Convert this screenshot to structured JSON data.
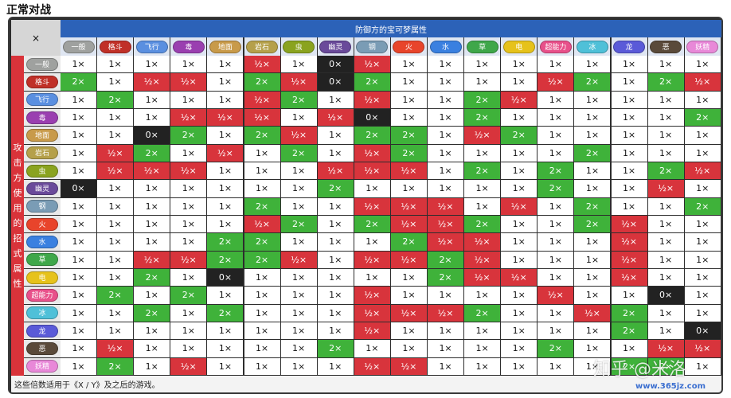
{
  "page_title": "正常对战",
  "corner_label": "×",
  "defender_header": "防御方的宝可梦属性",
  "attacker_header": "攻击方使用的招式属性",
  "footnote": "这些倍数适用于《X / Y》及之后的游戏。",
  "watermark": "知乎 @米洛",
  "watermark_url": "www.365jz.com",
  "types": [
    {
      "name": "一般",
      "color": "#9fa19f"
    },
    {
      "name": "格斗",
      "color": "#c03028"
    },
    {
      "name": "飞行",
      "color": "#5a8fe0"
    },
    {
      "name": "毒",
      "color": "#9a3fb0"
    },
    {
      "name": "地面",
      "color": "#c89a4a"
    },
    {
      "name": "岩石",
      "color": "#b5a04a"
    },
    {
      "name": "虫",
      "color": "#8aa31f"
    },
    {
      "name": "幽灵",
      "color": "#6a4a9a"
    },
    {
      "name": "钢",
      "color": "#7a9cb5"
    },
    {
      "name": "火",
      "color": "#e8442b"
    },
    {
      "name": "水",
      "color": "#3a80e0"
    },
    {
      "name": "草",
      "color": "#3fa74a"
    },
    {
      "name": "电",
      "color": "#e6c21b"
    },
    {
      "name": "超能力",
      "color": "#e8508a"
    },
    {
      "name": "冰",
      "color": "#4fc0d8"
    },
    {
      "name": "龙",
      "color": "#5a5ad8"
    },
    {
      "name": "恶",
      "color": "#5a4a3a"
    },
    {
      "name": "妖精",
      "color": "#e888d8"
    }
  ],
  "matrix": [
    [
      "1×",
      "1×",
      "1×",
      "1×",
      "1×",
      "½×",
      "1×",
      "0×",
      "½×",
      "1×",
      "1×",
      "1×",
      "1×",
      "1×",
      "1×",
      "1×",
      "1×",
      "1×"
    ],
    [
      "2×",
      "1×",
      "½×",
      "½×",
      "1×",
      "2×",
      "½×",
      "0×",
      "2×",
      "1×",
      "1×",
      "1×",
      "1×",
      "½×",
      "2×",
      "1×",
      "2×",
      "½×"
    ],
    [
      "1×",
      "2×",
      "1×",
      "1×",
      "1×",
      "½×",
      "2×",
      "1×",
      "½×",
      "1×",
      "1×",
      "2×",
      "½×",
      "1×",
      "1×",
      "1×",
      "1×",
      "1×"
    ],
    [
      "1×",
      "1×",
      "1×",
      "½×",
      "½×",
      "½×",
      "1×",
      "½×",
      "0×",
      "1×",
      "1×",
      "2×",
      "1×",
      "1×",
      "1×",
      "1×",
      "1×",
      "2×"
    ],
    [
      "1×",
      "1×",
      "0×",
      "2×",
      "1×",
      "2×",
      "½×",
      "1×",
      "2×",
      "2×",
      "1×",
      "½×",
      "2×",
      "1×",
      "1×",
      "1×",
      "1×",
      "1×"
    ],
    [
      "1×",
      "½×",
      "2×",
      "1×",
      "½×",
      "1×",
      "2×",
      "1×",
      "½×",
      "2×",
      "1×",
      "1×",
      "1×",
      "1×",
      "2×",
      "1×",
      "1×",
      "1×"
    ],
    [
      "1×",
      "½×",
      "½×",
      "½×",
      "1×",
      "1×",
      "1×",
      "½×",
      "½×",
      "½×",
      "1×",
      "2×",
      "1×",
      "2×",
      "1×",
      "1×",
      "2×",
      "½×"
    ],
    [
      "0×",
      "1×",
      "1×",
      "1×",
      "1×",
      "1×",
      "1×",
      "2×",
      "1×",
      "1×",
      "1×",
      "1×",
      "1×",
      "2×",
      "1×",
      "1×",
      "½×",
      "1×"
    ],
    [
      "1×",
      "1×",
      "1×",
      "1×",
      "1×",
      "2×",
      "1×",
      "1×",
      "½×",
      "½×",
      "½×",
      "1×",
      "½×",
      "1×",
      "2×",
      "1×",
      "1×",
      "2×"
    ],
    [
      "1×",
      "1×",
      "1×",
      "1×",
      "1×",
      "½×",
      "2×",
      "1×",
      "2×",
      "½×",
      "½×",
      "2×",
      "1×",
      "1×",
      "2×",
      "½×",
      "1×",
      "1×"
    ],
    [
      "1×",
      "1×",
      "1×",
      "1×",
      "2×",
      "2×",
      "1×",
      "1×",
      "1×",
      "2×",
      "½×",
      "½×",
      "1×",
      "1×",
      "1×",
      "½×",
      "1×",
      "1×"
    ],
    [
      "1×",
      "1×",
      "½×",
      "½×",
      "2×",
      "2×",
      "½×",
      "1×",
      "½×",
      "½×",
      "2×",
      "½×",
      "1×",
      "1×",
      "1×",
      "½×",
      "1×",
      "1×"
    ],
    [
      "1×",
      "1×",
      "2×",
      "1×",
      "0×",
      "1×",
      "1×",
      "1×",
      "1×",
      "1×",
      "2×",
      "½×",
      "½×",
      "1×",
      "1×",
      "½×",
      "1×",
      "1×"
    ],
    [
      "1×",
      "2×",
      "1×",
      "2×",
      "1×",
      "1×",
      "1×",
      "1×",
      "½×",
      "1×",
      "1×",
      "1×",
      "1×",
      "½×",
      "1×",
      "1×",
      "0×",
      "1×"
    ],
    [
      "1×",
      "1×",
      "2×",
      "1×",
      "2×",
      "1×",
      "1×",
      "1×",
      "½×",
      "½×",
      "½×",
      "2×",
      "1×",
      "1×",
      "½×",
      "2×",
      "1×",
      "1×"
    ],
    [
      "1×",
      "1×",
      "1×",
      "1×",
      "1×",
      "1×",
      "1×",
      "1×",
      "½×",
      "1×",
      "1×",
      "1×",
      "1×",
      "1×",
      "1×",
      "2×",
      "1×",
      "0×"
    ],
    [
      "1×",
      "½×",
      "1×",
      "1×",
      "1×",
      "1×",
      "1×",
      "2×",
      "1×",
      "1×",
      "1×",
      "1×",
      "1×",
      "2×",
      "1×",
      "1×",
      "½×",
      "½×"
    ],
    [
      "1×",
      "2×",
      "1×",
      "½×",
      "1×",
      "1×",
      "1×",
      "1×",
      "½×",
      "½×",
      "1×",
      "1×",
      "1×",
      "1×",
      "1×",
      "2×",
      "2×",
      "1×"
    ]
  ]
}
